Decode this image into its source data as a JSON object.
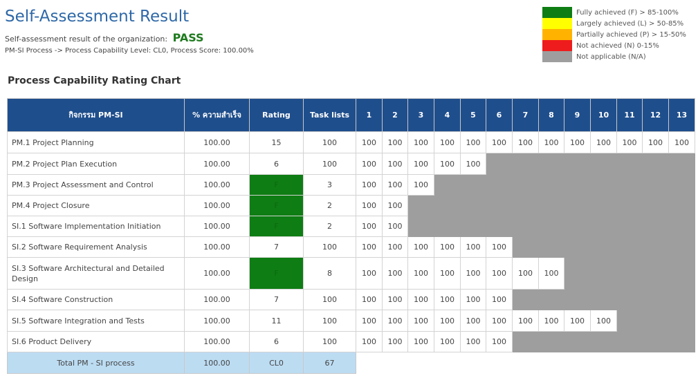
{
  "header": {
    "title": "Self-Assessment Result",
    "result_label": "Self-assessment result of the organization:",
    "result_value": "PASS",
    "process_line": "PM-SI Process -> Process Capability Level: CL0, Process Score: 100.00%"
  },
  "legend": [
    {
      "color": "#0e7d13",
      "label": "Fully achieved (F) > 85-100%"
    },
    {
      "color": "#ffff00",
      "label": "Largely achieved (L) > 50-85%"
    },
    {
      "color": "#ffb300",
      "label": "Partially achieved (P) > 15-50%"
    },
    {
      "color": "#ee1c1c",
      "label": "Not achieved (N) 0-15%"
    },
    {
      "color": "#9e9e9e",
      "label": "Not applicable (N/A)"
    }
  ],
  "chart_title": "Process Capability Rating Chart",
  "table": {
    "headers": {
      "activity": "กิจกรรม PM-SI",
      "percent": "% ความสำเร็จ",
      "rating": "Rating",
      "task_lists": "Task lists",
      "tasks": [
        "1",
        "2",
        "3",
        "4",
        "5",
        "6",
        "7",
        "8",
        "9",
        "10",
        "11",
        "12",
        "13"
      ]
    },
    "rows": [
      {
        "activity": "PM.1 Project Planning",
        "percent": "100.00",
        "rating": "15",
        "rating_f": false,
        "task_lists": "100",
        "tasks": [
          "100",
          "100",
          "100",
          "100",
          "100",
          "100",
          "100",
          "100",
          "100",
          "100",
          "100",
          "100",
          "100"
        ]
      },
      {
        "activity": "PM.2 Project Plan Execution",
        "percent": "100.00",
        "rating": "6",
        "rating_f": false,
        "task_lists": "100",
        "tasks": [
          "100",
          "100",
          "100",
          "100",
          "100"
        ]
      },
      {
        "activity": "PM.3 Project Assessment and Control",
        "percent": "100.00",
        "rating": "F",
        "rating_f": true,
        "task_lists": "3",
        "tasks": [
          "100",
          "100",
          "100"
        ]
      },
      {
        "activity": "PM.4 Project Closure",
        "percent": "100.00",
        "rating": "F",
        "rating_f": true,
        "task_lists": "2",
        "tasks": [
          "100",
          "100"
        ]
      },
      {
        "activity": "SI.1 Software Implementation Initiation",
        "percent": "100.00",
        "rating": "F",
        "rating_f": true,
        "task_lists": "2",
        "tasks": [
          "100",
          "100"
        ]
      },
      {
        "activity": "SI.2 Software Requirement Analysis",
        "percent": "100.00",
        "rating": "7",
        "rating_f": false,
        "task_lists": "100",
        "tasks": [
          "100",
          "100",
          "100",
          "100",
          "100",
          "100"
        ]
      },
      {
        "activity": "SI.3 Software Architectural and Detailed Design",
        "percent": "100.00",
        "rating": "F",
        "rating_f": true,
        "task_lists": "8",
        "tasks": [
          "100",
          "100",
          "100",
          "100",
          "100",
          "100",
          "100",
          "100"
        ]
      },
      {
        "activity": "SI.4 Software Construction",
        "percent": "100.00",
        "rating": "7",
        "rating_f": false,
        "task_lists": "100",
        "tasks": [
          "100",
          "100",
          "100",
          "100",
          "100",
          "100"
        ]
      },
      {
        "activity": "SI.5 Software Integration and Tests",
        "percent": "100.00",
        "rating": "11",
        "rating_f": false,
        "task_lists": "100",
        "tasks": [
          "100",
          "100",
          "100",
          "100",
          "100",
          "100",
          "100",
          "100",
          "100",
          "100"
        ]
      },
      {
        "activity": "SI.6 Product Delivery",
        "percent": "100.00",
        "rating": "6",
        "rating_f": false,
        "task_lists": "100",
        "tasks": [
          "100",
          "100",
          "100",
          "100",
          "100",
          "100"
        ]
      }
    ],
    "total": {
      "label": "Total PM - SI process",
      "percent": "100.00",
      "rating": "CL0",
      "task_lists": "67"
    }
  }
}
